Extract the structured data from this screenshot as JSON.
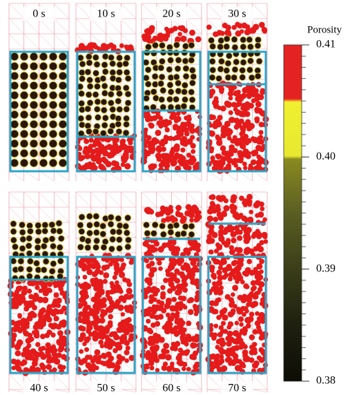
{
  "panels": [
    {
      "label": "0 s"
    },
    {
      "label": "10 s"
    },
    {
      "label": "20 s"
    },
    {
      "label": "30 s"
    },
    {
      "label": "40 s"
    },
    {
      "label": "50 s"
    },
    {
      "label": "60 s"
    },
    {
      "label": "70 s"
    }
  ],
  "colorbar": {
    "title": "Porosity",
    "lim": [
      0.38,
      0.41
    ],
    "ticks": [
      {
        "value": 0.41,
        "label": "0.41"
      },
      {
        "value": 0.4,
        "label": "0.40"
      },
      {
        "value": 0.39,
        "label": "0.39"
      },
      {
        "value": 0.38,
        "label": "0.38"
      }
    ]
  }
}
